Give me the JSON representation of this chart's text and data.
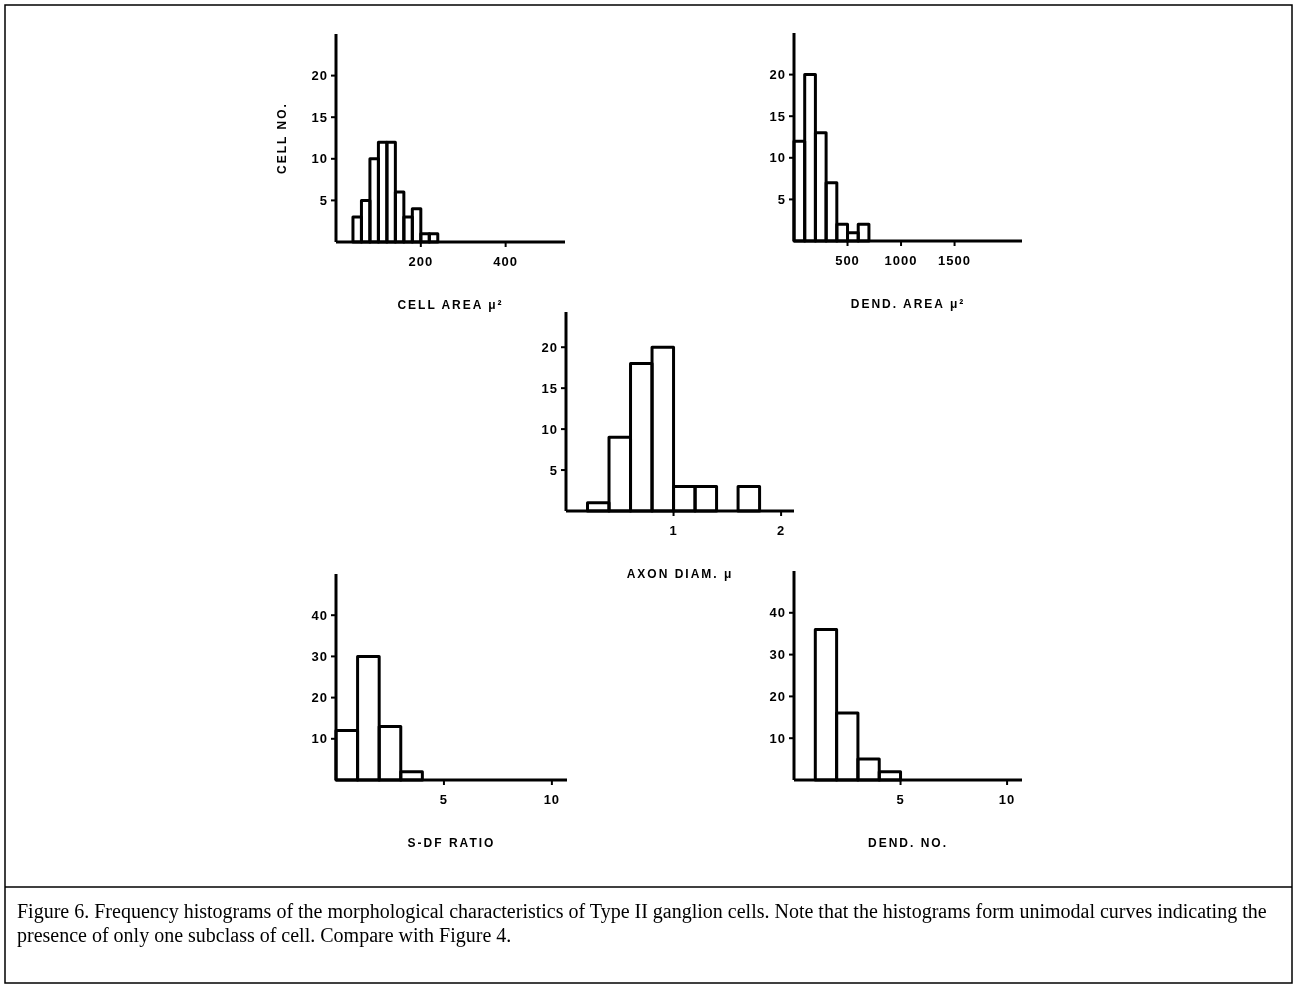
{
  "chart_data": [
    {
      "type": "histogram",
      "xlabel": "CELL AREA μ²",
      "ylabel": "CELL NO.",
      "bins": [
        40,
        60,
        80,
        100,
        120,
        140,
        160,
        180,
        200,
        220,
        240
      ],
      "values": [
        3,
        5,
        10,
        12,
        12,
        6,
        3,
        4,
        1,
        1
      ],
      "xlim": [
        0,
        540
      ],
      "ylim": [
        0,
        25
      ],
      "xticks": [
        200,
        400
      ],
      "yticks": [
        5,
        10,
        15,
        20
      ],
      "annotations": [
        "Figure 6. Frequency histograms of the morphological characteristics of Type II ganglion cells. Note that the histograms form unimodal curves indicating the presence of only one subclass of cell. Compare with Figure 4."
      ]
    },
    {
      "type": "histogram",
      "xlabel": "DEND. AREA μ²",
      "bins": [
        0,
        100,
        200,
        300,
        400,
        500,
        600,
        700
      ],
      "values": [
        12,
        20,
        13,
        7,
        2,
        1,
        2
      ],
      "xlim": [
        0,
        2130
      ],
      "ylim": [
        0,
        25
      ],
      "xticks": [
        500,
        1000,
        1500
      ],
      "yticks": [
        5,
        10,
        15,
        20
      ]
    },
    {
      "type": "histogram",
      "xlabel": "AXON DIAM. μ",
      "bins": [
        0.2,
        0.4,
        0.6,
        0.8,
        1.0,
        1.2,
        1.4,
        1.6,
        1.8
      ],
      "values": [
        1,
        9,
        18,
        20,
        3,
        3,
        0,
        3
      ],
      "xlim": [
        0,
        2.12
      ],
      "ylim": [
        0,
        24.3
      ],
      "xticks": [
        1,
        2
      ],
      "yticks": [
        5,
        10,
        15,
        20
      ]
    },
    {
      "type": "histogram",
      "xlabel": "S-DF RATIO",
      "bins": [
        0,
        1,
        2,
        3,
        4
      ],
      "values": [
        12,
        30,
        13,
        2
      ],
      "xlim": [
        0,
        10.7
      ],
      "ylim": [
        0,
        50
      ],
      "xticks": [
        5,
        10
      ],
      "yticks": [
        10,
        20,
        30,
        40
      ]
    },
    {
      "type": "histogram",
      "xlabel": "DEND. NO.",
      "bins": [
        1,
        2,
        3,
        4,
        5
      ],
      "values": [
        36,
        16,
        5,
        2
      ],
      "xlim": [
        0,
        10.7
      ],
      "ylim": [
        0,
        50
      ],
      "xticks": [
        5,
        10
      ],
      "yticks": [
        10,
        20,
        30,
        40
      ]
    }
  ]
}
